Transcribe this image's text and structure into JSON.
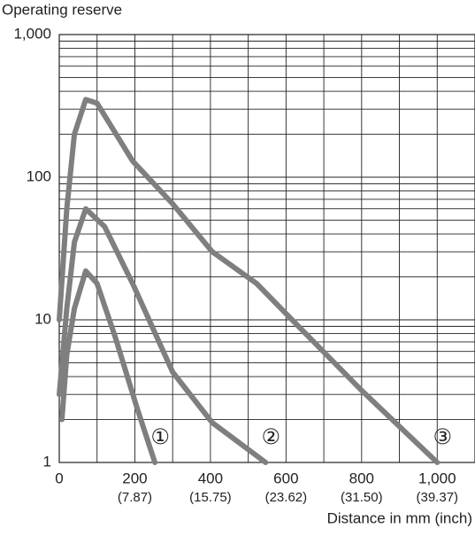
{
  "chart_data": {
    "type": "line",
    "y_label": "Operating reserve",
    "x_label": "Distance in mm (inch)",
    "log_y": true,
    "grid": true,
    "xlim": [
      0,
      1100
    ],
    "ylim": [
      1,
      1000
    ],
    "xticks": [
      0,
      200,
      400,
      600,
      800,
      {
        "value": 1000,
        "label": "1,000"
      }
    ],
    "xtick_sublabels": [
      null,
      "(7.87)",
      "(15.75)",
      "(23.62)",
      "(31.50)",
      "(39.37)"
    ],
    "x_minor_ticks": [
      100,
      300,
      500,
      700,
      900
    ],
    "yticks": [
      1,
      10,
      100,
      {
        "value": 1000,
        "label": "1,000"
      }
    ],
    "y_minor_ticks": [
      2,
      3,
      4,
      5,
      6,
      7,
      8,
      9,
      20,
      30,
      40,
      50,
      60,
      70,
      80,
      90,
      200,
      300,
      400,
      500,
      600,
      700,
      800,
      900
    ],
    "series": [
      {
        "name": "①",
        "color": "#7f7f7f",
        "x": [
          7,
          20,
          40,
          70,
          100,
          148,
          206,
          253
        ],
        "values": [
          2,
          5.7,
          12,
          22,
          18,
          7.6,
          2.4,
          1
        ]
      },
      {
        "name": "②",
        "color": "#7f7f7f",
        "x": [
          0,
          20,
          40,
          70,
          120,
          194,
          300,
          405,
          546
        ],
        "values": [
          3,
          12,
          35,
          60,
          45,
          18,
          4.3,
          1.9,
          1
        ]
      },
      {
        "name": "③",
        "color": "#7f7f7f",
        "x": [
          0,
          20,
          40,
          70,
          100,
          194,
          300,
          405,
          522,
          616,
          800,
          1000
        ],
        "values": [
          10,
          60,
          200,
          350,
          330,
          130,
          65,
          30,
          18,
          10,
          3.2,
          1
        ]
      }
    ]
  }
}
